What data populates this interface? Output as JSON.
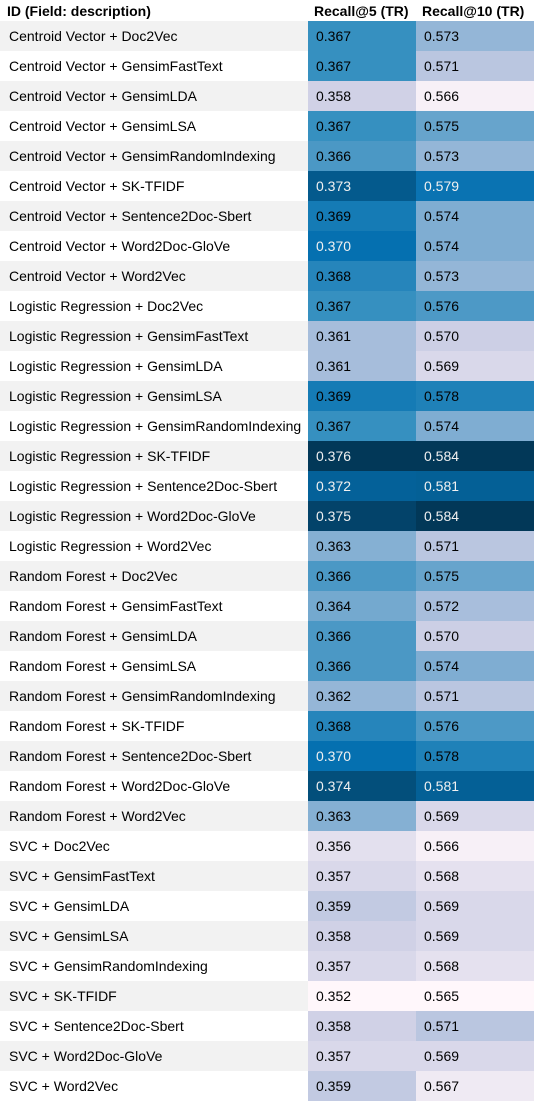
{
  "chart_data": {
    "type": "table",
    "columns": [
      "ID (Field: description)",
      "Recall@5 (TR)",
      "Recall@10 (TR)"
    ],
    "rows": [
      {
        "id": "Centroid Vector + Doc2Vec",
        "r5": "0.367",
        "r10": "0.573"
      },
      {
        "id": "Centroid Vector + GensimFastText",
        "r5": "0.367",
        "r10": "0.571"
      },
      {
        "id": "Centroid Vector + GensimLDA",
        "r5": "0.358",
        "r10": "0.566"
      },
      {
        "id": "Centroid Vector + GensimLSA",
        "r5": "0.367",
        "r10": "0.575"
      },
      {
        "id": "Centroid Vector + GensimRandomIndexing",
        "r5": "0.366",
        "r10": "0.573"
      },
      {
        "id": "Centroid Vector + SK-TFIDF",
        "r5": "0.373",
        "r10": "0.579"
      },
      {
        "id": "Centroid Vector + Sentence2Doc-Sbert",
        "r5": "0.369",
        "r10": "0.574"
      },
      {
        "id": "Centroid Vector + Word2Doc-GloVe",
        "r5": "0.370",
        "r10": "0.574"
      },
      {
        "id": "Centroid Vector + Word2Vec",
        "r5": "0.368",
        "r10": "0.573"
      },
      {
        "id": "Logistic Regression + Doc2Vec",
        "r5": "0.367",
        "r10": "0.576"
      },
      {
        "id": "Logistic Regression + GensimFastText",
        "r5": "0.361",
        "r10": "0.570"
      },
      {
        "id": "Logistic Regression + GensimLDA",
        "r5": "0.361",
        "r10": "0.569"
      },
      {
        "id": "Logistic Regression + GensimLSA",
        "r5": "0.369",
        "r10": "0.578"
      },
      {
        "id": "Logistic Regression + GensimRandomIndexing",
        "r5": "0.367",
        "r10": "0.574"
      },
      {
        "id": "Logistic Regression + SK-TFIDF",
        "r5": "0.376",
        "r10": "0.584"
      },
      {
        "id": "Logistic Regression + Sentence2Doc-Sbert",
        "r5": "0.372",
        "r10": "0.581"
      },
      {
        "id": "Logistic Regression + Word2Doc-GloVe",
        "r5": "0.375",
        "r10": "0.584"
      },
      {
        "id": "Logistic Regression + Word2Vec",
        "r5": "0.363",
        "r10": "0.571"
      },
      {
        "id": "Random Forest + Doc2Vec",
        "r5": "0.366",
        "r10": "0.575"
      },
      {
        "id": "Random Forest + GensimFastText",
        "r5": "0.364",
        "r10": "0.572"
      },
      {
        "id": "Random Forest + GensimLDA",
        "r5": "0.366",
        "r10": "0.570"
      },
      {
        "id": "Random Forest + GensimLSA",
        "r5": "0.366",
        "r10": "0.574"
      },
      {
        "id": "Random Forest + GensimRandomIndexing",
        "r5": "0.362",
        "r10": "0.571"
      },
      {
        "id": "Random Forest + SK-TFIDF",
        "r5": "0.368",
        "r10": "0.576"
      },
      {
        "id": "Random Forest + Sentence2Doc-Sbert",
        "r5": "0.370",
        "r10": "0.578"
      },
      {
        "id": "Random Forest + Word2Doc-GloVe",
        "r5": "0.374",
        "r10": "0.581"
      },
      {
        "id": "Random Forest + Word2Vec",
        "r5": "0.363",
        "r10": "0.569"
      },
      {
        "id": "SVC + Doc2Vec",
        "r5": "0.356",
        "r10": "0.566"
      },
      {
        "id": "SVC + GensimFastText",
        "r5": "0.357",
        "r10": "0.568"
      },
      {
        "id": "SVC + GensimLDA",
        "r5": "0.359",
        "r10": "0.569"
      },
      {
        "id": "SVC + GensimLSA",
        "r5": "0.358",
        "r10": "0.569"
      },
      {
        "id": "SVC + GensimRandomIndexing",
        "r5": "0.357",
        "r10": "0.568"
      },
      {
        "id": "SVC + SK-TFIDF",
        "r5": "0.352",
        "r10": "0.565"
      },
      {
        "id": "SVC + Sentence2Doc-Sbert",
        "r5": "0.358",
        "r10": "0.571"
      },
      {
        "id": "SVC + Word2Doc-GloVe",
        "r5": "0.357",
        "r10": "0.569"
      },
      {
        "id": "SVC + Word2Vec",
        "r5": "0.359",
        "r10": "0.567"
      }
    ],
    "color_scale": [
      "#fff7fb",
      "#ece7f2",
      "#d0d1e6",
      "#a6bddb",
      "#74a9cf",
      "#3690c0",
      "#0570b0",
      "#045a8d",
      "#023858"
    ]
  }
}
